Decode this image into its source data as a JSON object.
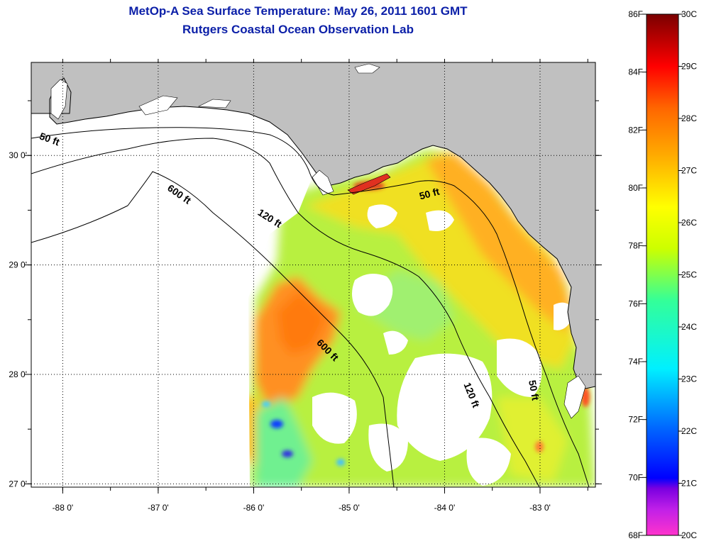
{
  "title": {
    "line1": "MetOp-A Sea Surface Temperature:  May 26, 2011 1601 GMT",
    "line2": "Rutgers Coastal Ocean Observation Lab"
  },
  "map": {
    "lon_range": [
      -88.33,
      -82.42
    ],
    "lat_range": [
      26.97,
      30.85
    ],
    "lon_ticks": [
      {
        "value": -88,
        "label": "-88 0'"
      },
      {
        "value": -87,
        "label": "-87 0'"
      },
      {
        "value": -86,
        "label": "-86 0'"
      },
      {
        "value": -85,
        "label": "-85 0'"
      },
      {
        "value": -84,
        "label": "-84 0'"
      },
      {
        "value": -83,
        "label": "-83 0'"
      }
    ],
    "lat_ticks": [
      {
        "value": 30,
        "label": "30 0'"
      },
      {
        "value": 29,
        "label": "29 0'"
      },
      {
        "value": 28,
        "label": "28 0'"
      },
      {
        "value": 27,
        "label": "27 0'"
      }
    ],
    "grid": "dotted",
    "land_color": "#c0c0c0",
    "contour_labels": [
      {
        "text": "50 ft",
        "lon": -88.15,
        "lat": 30.12,
        "rotate": 20
      },
      {
        "text": "600 ft",
        "lon": -86.8,
        "lat": 29.62,
        "rotate": 35
      },
      {
        "text": "120 ft",
        "lon": -85.85,
        "lat": 29.4,
        "rotate": 32
      },
      {
        "text": "50 ft",
        "lon": -84.15,
        "lat": 29.62,
        "rotate": -15
      },
      {
        "text": "600 ft",
        "lon": -85.25,
        "lat": 28.2,
        "rotate": 45
      },
      {
        "text": "120 ft",
        "lon": -83.75,
        "lat": 27.8,
        "rotate": 68
      },
      {
        "text": "50 ft",
        "lon": -83.1,
        "lat": 27.85,
        "rotate": 80
      }
    ]
  },
  "colorbar": {
    "f_labels": [
      "86F",
      "84F",
      "82F",
      "80F",
      "78F",
      "76F",
      "74F",
      "72F",
      "70F",
      "68F"
    ],
    "f_values": [
      86,
      84,
      82,
      80,
      78,
      76,
      74,
      72,
      70,
      68
    ],
    "c_labels": [
      "30C",
      "29C",
      "28C",
      "27C",
      "26C",
      "25C",
      "24C",
      "23C",
      "22C",
      "21C",
      "20C"
    ],
    "c_values": [
      30,
      29,
      28,
      27,
      26,
      25,
      24,
      23,
      22,
      21,
      20
    ],
    "range_c": [
      20,
      30
    ],
    "colors": [
      "#ff33cc",
      "#7a00e0",
      "#0000ff",
      "#00d0ff",
      "#33ff99",
      "#d8ff00",
      "#ffd000",
      "#ff7a00",
      "#ff0000",
      "#7a0000"
    ]
  }
}
